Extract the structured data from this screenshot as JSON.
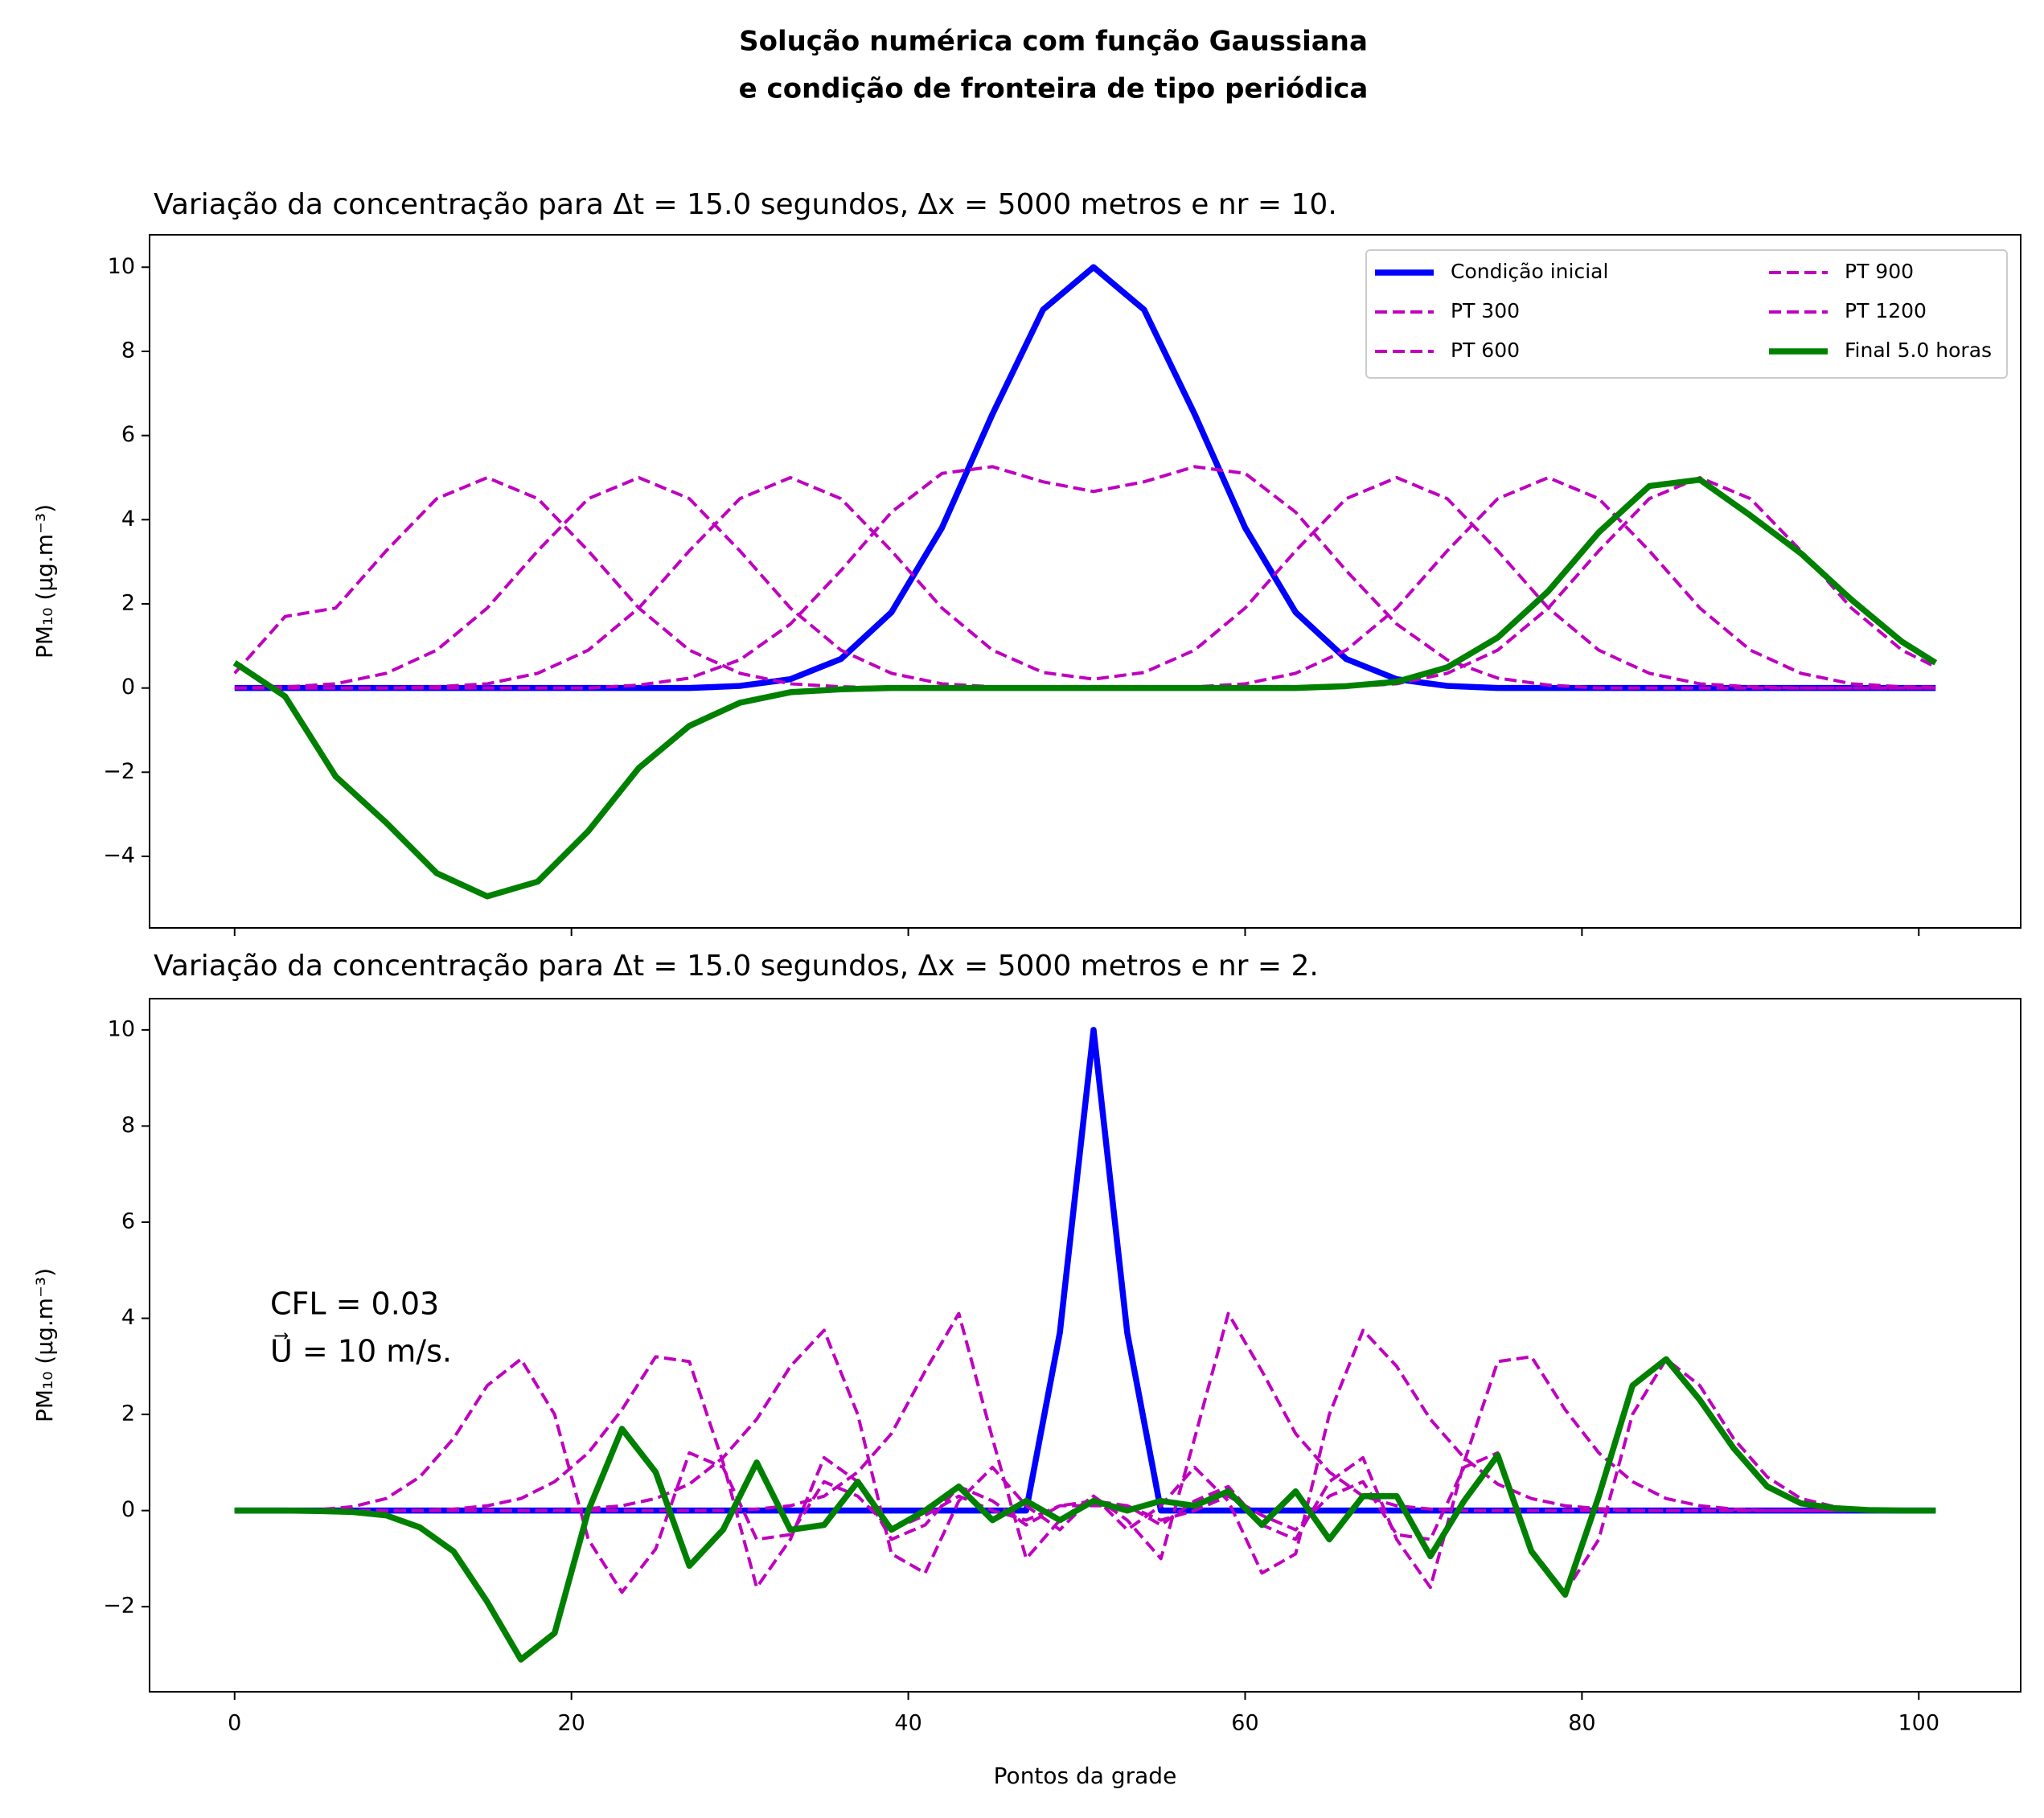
{
  "title": [
    "Solução numérica com função Gaussiana",
    "e condição de fronteira de tipo periódica"
  ],
  "chart_data": [
    {
      "type": "line",
      "title": "Variação da concentração para Δt = 15.0 segundos, Δx = 5000 metros e nr = 10.",
      "ylabel": "PM₁₀ (μg.m⁻³)",
      "legend": "upper right",
      "grid": false,
      "show_xticklabels": false,
      "x": [
        0,
        3,
        6,
        9,
        12,
        15,
        18,
        21,
        24,
        27,
        30,
        33,
        36,
        39,
        42,
        45,
        48,
        51,
        54,
        57,
        60,
        63,
        66,
        69,
        72,
        75,
        78,
        81,
        84,
        87,
        90,
        93,
        96,
        99,
        101
      ],
      "xlim": [
        -5.05,
        106.05
      ],
      "xticks": [
        0,
        20,
        40,
        60,
        80,
        100
      ],
      "ylim": [
        -5.7,
        10.77
      ],
      "yticks": [
        {
          "value": -4,
          "label": "−4"
        },
        {
          "value": -2,
          "label": "−2"
        },
        0,
        2,
        4,
        6,
        8,
        10
      ],
      "series": [
        {
          "name": "Condição inicial",
          "color": "#0000ff",
          "linestyle": "solid",
          "values": [
            0,
            0,
            0,
            0,
            0,
            0,
            0,
            0,
            0,
            0,
            0.05,
            0.21,
            0.69,
            1.8,
            3.81,
            6.51,
            8.99,
            10,
            8.99,
            6.51,
            3.81,
            1.8,
            0.69,
            0.21,
            0.05,
            0,
            0,
            0,
            0,
            0,
            0,
            0,
            0,
            0,
            0
          ]
        },
        {
          "name": "PT 300",
          "color": "#bf00bf",
          "linestyle": "dashed",
          "values": [
            0,
            0,
            0,
            0,
            0,
            0,
            0,
            0,
            0.07,
            0.235,
            0.67,
            1.52,
            2.79,
            4.18,
            5.1,
            5.26,
            4.9,
            4.67,
            4.9,
            5.26,
            5.1,
            4.18,
            2.79,
            1.52,
            0.67,
            0.235,
            0.07,
            0,
            0,
            0,
            0,
            0,
            0,
            0,
            0
          ]
        },
        {
          "name": "PT 600",
          "color": "#bf00bf",
          "linestyle": "dashed",
          "values": [
            0,
            0,
            0,
            0,
            0.03,
            0.1,
            0.35,
            0.9,
            1.9,
            3.26,
            4.5,
            5,
            4.5,
            3.26,
            1.9,
            0.9,
            0.37,
            0.21,
            0.37,
            0.9,
            1.9,
            3.26,
            4.5,
            5,
            4.5,
            3.26,
            1.9,
            0.9,
            0.35,
            0.1,
            0.03,
            0,
            0,
            0,
            0
          ]
        },
        {
          "name": "PT 900",
          "color": "#bf00bf",
          "linestyle": "dashed",
          "values": [
            0,
            0.025,
            0.1,
            0.35,
            0.9,
            1.9,
            3.26,
            4.5,
            5,
            4.5,
            3.26,
            1.9,
            0.9,
            0.35,
            0.1,
            0.03,
            0,
            0,
            0,
            0.025,
            0.1,
            0.35,
            0.9,
            1.9,
            3.26,
            4.5,
            5,
            4.5,
            3.26,
            1.9,
            0.9,
            0.35,
            0.1,
            0.03,
            0.02
          ]
        },
        {
          "name": "PT 1200",
          "color": "#bf00bf",
          "linestyle": "dashed",
          "values": [
            0.35,
            1.7,
            1.9,
            3.26,
            4.5,
            5,
            4.5,
            3.26,
            1.9,
            0.9,
            0.35,
            0.1,
            0.03,
            0,
            0,
            0,
            0,
            0,
            0,
            0,
            0,
            0,
            0.03,
            0.1,
            0.35,
            0.9,
            1.9,
            3.26,
            4.5,
            5,
            4.5,
            3.26,
            1.9,
            0.9,
            0.5
          ]
        },
        {
          "name": "Final 5.0 horas",
          "color": "#008000",
          "linestyle": "solid",
          "values": [
            0.6,
            -0.2,
            -2.1,
            -3.2,
            -4.4,
            -4.95,
            -4.6,
            -3.4,
            -1.9,
            -0.9,
            -0.35,
            -0.1,
            -0.03,
            0,
            0,
            0,
            0,
            0,
            0,
            0,
            0,
            0,
            0.045,
            0.15,
            0.49,
            1.2,
            2.3,
            3.7,
            4.8,
            4.95,
            4.1,
            3.2,
            2.1,
            1.1,
            0.6
          ]
        }
      ]
    },
    {
      "type": "line",
      "title": "Variação da concentração para Δt = 15.0 segundos, Δx = 5000 metros e nr = 2.",
      "ylabel": "PM₁₀ (μg.m⁻³)",
      "xlabel": "Pontos da grade",
      "grid": false,
      "show_xticklabels": true,
      "annotation": [
        "CFL = 0.03",
        "U⃗ = 10 m/s."
      ],
      "x": [
        0,
        1,
        3,
        5,
        7,
        9,
        11,
        13,
        15,
        17,
        19,
        21,
        23,
        25,
        27,
        29,
        31,
        33,
        35,
        37,
        39,
        41,
        43,
        45,
        47,
        49,
        51,
        53,
        55,
        57,
        59,
        61,
        63,
        65,
        67,
        69,
        71,
        73,
        75,
        77,
        79,
        81,
        83,
        85,
        87,
        89,
        91,
        93,
        95,
        97,
        99,
        101
      ],
      "xlim": [
        -5.05,
        106.05
      ],
      "xticks": [
        0,
        20,
        40,
        60,
        80,
        100
      ],
      "ylim": [
        -3.77,
        10.65
      ],
      "yticks": [
        {
          "value": -2,
          "label": "−2"
        },
        0,
        2,
        4,
        6,
        8,
        10
      ],
      "series": [
        {
          "name": "Condição inicial",
          "color": "#0000ff",
          "linestyle": "solid",
          "values": [
            0,
            0,
            0,
            0,
            0,
            0,
            0,
            0,
            0,
            0,
            0,
            0,
            0,
            0,
            0,
            0,
            0,
            0,
            0,
            0,
            0,
            0,
            0,
            0,
            0,
            3.7,
            10,
            3.7,
            0,
            0,
            0,
            0,
            0,
            0,
            0,
            0,
            0,
            0,
            0,
            0,
            0,
            0,
            0,
            0,
            0,
            0,
            0,
            0,
            0,
            0,
            0,
            0
          ]
        },
        {
          "name": "PT 300",
          "color": "#bf00bf",
          "linestyle": "dashed",
          "values": [
            0,
            0,
            0,
            0,
            0,
            0,
            0,
            0,
            0,
            0,
            0,
            0,
            0,
            0,
            0,
            0,
            0.03,
            0.1,
            0.3,
            0.8,
            1.6,
            2.9,
            4.1,
            1.5,
            -1.0,
            -0.2,
            0.3,
            -0.2,
            -1.0,
            1.5,
            4.1,
            2.9,
            1.6,
            0.8,
            0.3,
            0.1,
            0.03,
            0,
            0,
            0,
            0,
            0,
            0,
            0,
            0,
            0,
            0,
            0,
            0,
            0,
            0,
            0
          ]
        },
        {
          "name": "PT 600",
          "color": "#bf00bf",
          "linestyle": "dashed",
          "values": [
            0,
            0,
            0,
            0,
            0,
            0,
            0,
            0,
            0,
            0,
            0,
            0.04,
            0.1,
            0.25,
            0.55,
            1.1,
            1.9,
            3.0,
            3.75,
            2.0,
            -0.9,
            -1.3,
            0.2,
            0.9,
            0.1,
            -0.4,
            0.3,
            -0.4,
            0.1,
            0.9,
            0.2,
            -1.3,
            -0.9,
            2.0,
            3.75,
            3.0,
            1.9,
            1.1,
            0.55,
            0.25,
            0.1,
            0.04,
            0,
            0,
            0,
            0,
            0,
            0,
            0,
            0,
            0,
            0
          ]
        },
        {
          "name": "PT 900",
          "color": "#bf00bf",
          "linestyle": "dashed",
          "values": [
            0,
            0,
            0,
            0,
            0,
            0,
            0,
            0.03,
            0.1,
            0.25,
            0.6,
            1.2,
            2.1,
            3.2,
            3.1,
            1.0,
            -1.6,
            -0.6,
            1.1,
            0.6,
            -0.6,
            -0.3,
            0.5,
            0.2,
            -0.3,
            0.1,
            0.2,
            0.1,
            -0.3,
            0.2,
            0.5,
            -0.3,
            -0.6,
            0.6,
            1.1,
            -0.6,
            -1.6,
            1.0,
            3.1,
            3.2,
            2.1,
            1.2,
            0.6,
            0.25,
            0.1,
            0.03,
            0,
            0,
            0,
            0,
            0,
            0
          ]
        },
        {
          "name": "PT 1200",
          "color": "#bf00bf",
          "linestyle": "dashed",
          "values": [
            0,
            0,
            0,
            0.02,
            0.08,
            0.25,
            0.7,
            1.5,
            2.6,
            3.15,
            2.0,
            -0.6,
            -1.7,
            -0.8,
            1.2,
            0.9,
            -0.6,
            -0.5,
            0.6,
            0.3,
            -0.4,
            -0.1,
            0.3,
            0,
            -0.2,
            0.1,
            0.1,
            0.1,
            -0.2,
            0,
            0.3,
            -0.1,
            -0.4,
            0.3,
            0.6,
            -0.5,
            -0.6,
            0.9,
            1.2,
            -0.8,
            -1.7,
            -0.6,
            2.0,
            3.15,
            2.6,
            1.5,
            0.7,
            0.25,
            0.08,
            0.02,
            0,
            0
          ]
        },
        {
          "name": "Final 5.0 horas",
          "color": "#008000",
          "linestyle": "solid",
          "values": [
            0,
            0,
            0,
            -0.01,
            -0.03,
            -0.1,
            -0.35,
            -0.85,
            -1.9,
            -3.1,
            -2.55,
            0,
            1.7,
            0.8,
            -1.15,
            -0.4,
            1.0,
            -0.4,
            -0.3,
            0.6,
            -0.4,
            0,
            0.5,
            -0.2,
            0.2,
            -0.2,
            0.2,
            0,
            0.2,
            0.1,
            0.4,
            -0.3,
            0.4,
            -0.6,
            0.3,
            0.3,
            -0.95,
            0.2,
            1.15,
            -0.85,
            -1.75,
            0.3,
            2.6,
            3.15,
            2.3,
            1.3,
            0.5,
            0.15,
            0.05,
            0.01,
            0,
            0
          ]
        }
      ]
    }
  ]
}
